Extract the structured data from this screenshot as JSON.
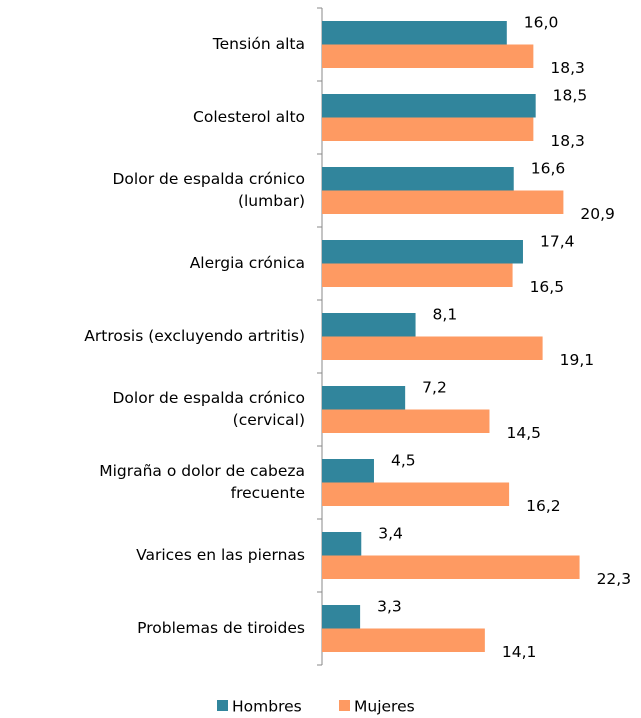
{
  "chart_data": {
    "type": "bar",
    "orientation": "horizontal",
    "categories": [
      [
        "Tensión alta"
      ],
      [
        "Colesterol alto"
      ],
      [
        "Dolor de espalda crónico",
        "(lumbar)"
      ],
      [
        "Alergia crónica"
      ],
      [
        "Artrosis (excluyendo artritis)"
      ],
      [
        "Dolor de espalda crónico",
        "(cervical)"
      ],
      [
        "Migraña o dolor de cabeza",
        "frecuente"
      ],
      [
        "Varices en las piernas"
      ],
      [
        "Problemas de tiroides"
      ]
    ],
    "series": [
      {
        "name": "Hombres",
        "color": "#31859c",
        "values": [
          16.0,
          18.5,
          16.6,
          17.4,
          8.1,
          7.2,
          4.5,
          3.4,
          3.3
        ],
        "value_labels": [
          "16,0",
          "18,5",
          "16,6",
          "17,4",
          "8,1",
          "7,2",
          "4,5",
          "3,4",
          "3,3"
        ]
      },
      {
        "name": "Mujeres",
        "color": "#fe9a62",
        "values": [
          18.3,
          18.3,
          20.9,
          16.5,
          19.1,
          14.5,
          16.2,
          22.3,
          14.1
        ],
        "value_labels": [
          "18,3",
          "18,3",
          "20,9",
          "16,5",
          "19,1",
          "14,5",
          "16,2",
          "22,3",
          "14,1"
        ]
      }
    ],
    "legend": "bottom"
  }
}
